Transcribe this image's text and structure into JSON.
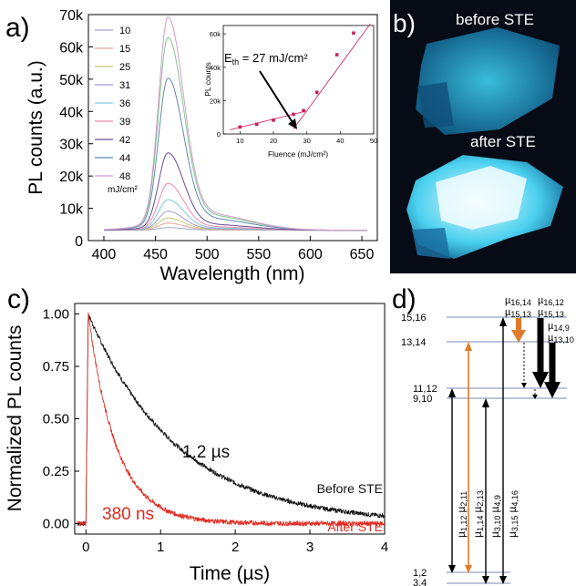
{
  "panel_labels": {
    "a": "a)",
    "b": "b)",
    "c": "c)",
    "d": "d)"
  },
  "chart_data": [
    {
      "id": "a-main",
      "type": "line",
      "xlabel": "Wavelength (nm)",
      "ylabel": "PL counts (a.u.)",
      "xlim": [
        385,
        665
      ],
      "ylim": [
        0,
        70000
      ],
      "x_ticks": [
        400,
        450,
        500,
        550,
        600,
        650
      ],
      "y_ticks": [
        0,
        10000,
        20000,
        30000,
        40000,
        50000,
        60000,
        70000
      ],
      "y_tick_labels": [
        "0",
        "10k",
        "20k",
        "30k",
        "40k",
        "50k",
        "60k",
        "70k"
      ],
      "legend_unit": "mJ/cm²",
      "peak_wavelength": 462,
      "series": [
        {
          "name": "10",
          "color": "#9aa8c8",
          "peak": 4000
        },
        {
          "name": "15",
          "color": "#e9a2a0",
          "peak": 5300
        },
        {
          "name": "25",
          "color": "#c8c86e",
          "peak": 6800
        },
        {
          "name": "31",
          "color": "#9b9ad6",
          "peak": 8800
        },
        {
          "name": "36",
          "color": "#83c6e0",
          "peak": 12200
        },
        {
          "name": "39",
          "color": "#f08aa6",
          "peak": 17000
        },
        {
          "name": "42",
          "color": "#6a4a9a",
          "peak": 26000
        },
        {
          "name": "44",
          "color": "#5f8bb0",
          "peak": 48000
        },
        {
          "name": "48",
          "color": "#d79ad0",
          "peak": 66000
        }
      ],
      "extra_series": {
        "name": "",
        "color": "#7fc78a",
        "peak": 60000
      }
    },
    {
      "id": "a-inset",
      "type": "scatter",
      "xlabel": "Fluence (mJ/cm²)",
      "ylabel": "PL counts",
      "xlim": [
        5,
        50
      ],
      "ylim": [
        0,
        65000
      ],
      "x_ticks": [
        10,
        20,
        30,
        40,
        50
      ],
      "y_ticks": [
        0,
        20000,
        40000,
        60000
      ],
      "y_tick_labels": [
        "0",
        "20k",
        "40k",
        "60k"
      ],
      "x": [
        10,
        15,
        20,
        26,
        29,
        33,
        39,
        44
      ],
      "y": [
        4200,
        5800,
        8300,
        11800,
        14000,
        25000,
        47500,
        60500
      ],
      "annotation": {
        "text": "E",
        "sub": "th",
        "rest": " = 27 mJ/cm²"
      }
    },
    {
      "id": "c",
      "type": "line",
      "xlabel": "Time (µs)",
      "ylabel": "Normalized PL counts",
      "xlim": [
        -0.15,
        4
      ],
      "ylim": [
        -0.05,
        1.05
      ],
      "x_ticks": [
        0,
        1,
        2,
        3,
        4
      ],
      "y_ticks": [
        0,
        0.25,
        0.5,
        0.75,
        1.0
      ],
      "y_tick_labels": [
        "0.00",
        "0.25",
        "0.50",
        "0.75",
        "1.00"
      ],
      "series": [
        {
          "name": "Before STE",
          "color": "#111111",
          "lifetime_label": "1.2 µs",
          "tau": 1.2
        },
        {
          "name": "After STE",
          "color": "#e0281e",
          "lifetime_label": "380 ns",
          "tau": 0.38
        }
      ]
    }
  ],
  "photo_b": {
    "before_label": "before STE",
    "after_label": "after STE"
  },
  "energy_diagram": {
    "levels": [
      "15,16",
      "13,14",
      "11,12",
      "9,10",
      "1,2",
      "3,4"
    ],
    "top_labels": {
      "l1": "µ",
      "l1s": "16,14",
      "l2": "µ",
      "l2s": "15,13",
      "r1": "µ",
      "r1s": "16,12",
      "r2": "µ",
      "r2s": "15,13",
      "r3": "µ",
      "r3s": "14,9",
      "r4": "µ",
      "r4s": "13,10"
    },
    "vertical_labels": [
      {
        "m": "µ",
        "a": "1,12",
        "b": "2,11"
      },
      {
        "m": "µ",
        "a": "1,14",
        "b": "2,13"
      },
      {
        "m": "µ",
        "a": "3,10",
        "b": "4,9"
      },
      {
        "m": "µ",
        "a": "3,15",
        "b": "4,16"
      }
    ],
    "colors": {
      "orange": "#e07b2a",
      "line": "#7a8ab0"
    }
  }
}
